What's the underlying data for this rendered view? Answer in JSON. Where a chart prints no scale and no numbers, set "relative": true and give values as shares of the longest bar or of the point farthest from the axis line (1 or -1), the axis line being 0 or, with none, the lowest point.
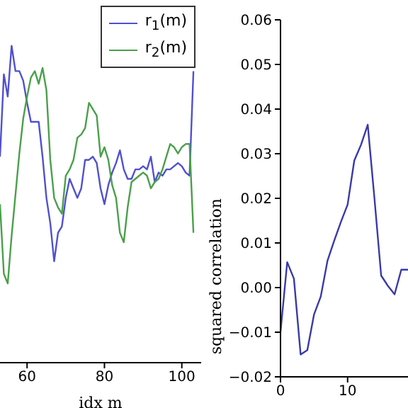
{
  "chart_data": [
    {
      "type": "line",
      "xlabel": "idx m",
      "relative": true,
      "xlim": [
        53,
        105
      ],
      "xticks": [
        60,
        80,
        100
      ],
      "legend": "top right",
      "grid": false,
      "marker": "none",
      "x": [
        53,
        54,
        55,
        56,
        57,
        58,
        59,
        60,
        61,
        62,
        63,
        64,
        65,
        66,
        67,
        68,
        69,
        70,
        71,
        72,
        73,
        74,
        75,
        76,
        77,
        78,
        79,
        80,
        81,
        82,
        83,
        84,
        85,
        86,
        87,
        88,
        89,
        90,
        91,
        92,
        93,
        94,
        95,
        96,
        97,
        98,
        99,
        100,
        101,
        102,
        103
      ],
      "series": [
        {
          "name": "r$_{1}$(m)",
          "color": "#5050d0",
          "values": [
            0.65,
            0.91,
            0.84,
            1.0,
            0.92,
            0.92,
            0.89,
            0.82,
            0.76,
            0.76,
            0.76,
            0.65,
            0.52,
            0.44,
            0.32,
            0.41,
            0.43,
            0.52,
            0.58,
            0.55,
            0.52,
            0.55,
            0.64,
            0.64,
            0.65,
            0.63,
            0.55,
            0.5,
            0.56,
            0.6,
            0.63,
            0.67,
            0.61,
            0.58,
            0.58,
            0.61,
            0.61,
            0.62,
            0.61,
            0.65,
            0.57,
            0.6,
            0.59,
            0.61,
            0.61,
            0.62,
            0.63,
            0.62,
            0.6,
            0.59,
            0.92
          ]
        },
        {
          "name": "r$_{2}$(m)",
          "color": "#4aa04a",
          "values": [
            0.5,
            0.28,
            0.25,
            0.4,
            0.53,
            0.66,
            0.77,
            0.84,
            0.9,
            0.92,
            0.88,
            0.93,
            0.86,
            0.64,
            0.52,
            0.49,
            0.47,
            0.59,
            0.61,
            0.64,
            0.71,
            0.72,
            0.74,
            0.82,
            0.8,
            0.78,
            0.65,
            0.68,
            0.64,
            0.56,
            0.52,
            0.41,
            0.38,
            0.49,
            0.57,
            0.58,
            0.59,
            0.6,
            0.59,
            0.55,
            0.57,
            0.58,
            0.61,
            0.65,
            0.69,
            0.68,
            0.66,
            0.68,
            0.69,
            0.69,
            0.41
          ]
        }
      ]
    },
    {
      "type": "line",
      "ylabel": "squared correlation",
      "xlim": [
        0,
        19
      ],
      "xticks": [
        0,
        10
      ],
      "ylim": [
        -0.02,
        0.06
      ],
      "yticks": [
        {
          "value": -0.02,
          "label": "−0.02"
        },
        {
          "value": -0.01,
          "label": "−0.01"
        },
        {
          "value": 0,
          "label": "0.00"
        },
        {
          "value": 0.01,
          "label": "0.01"
        },
        {
          "value": 0.02,
          "label": "0.02"
        },
        {
          "value": 0.03,
          "label": "0.03"
        },
        {
          "value": 0.04,
          "label": "0.04"
        },
        {
          "value": 0.05,
          "label": "0.05"
        },
        {
          "value": 0.06,
          "label": "0.06"
        }
      ],
      "grid": false,
      "marker": "none",
      "x": [
        0,
        1,
        2,
        3,
        4,
        5,
        6,
        7,
        8,
        9,
        10,
        11,
        12,
        13,
        14,
        15,
        16,
        17,
        18,
        19
      ],
      "series": [
        {
          "color": "#3a3aa8",
          "values": [
            -0.01,
            0.0057,
            0.002,
            -0.015,
            -0.014,
            -0.006,
            -0.002,
            0.006,
            0.0105,
            0.0147,
            0.0186,
            0.0285,
            0.032,
            0.0365,
            0.02,
            0.0027,
            0.0004,
            -0.0015,
            0.004,
            0.004
          ]
        }
      ]
    }
  ]
}
